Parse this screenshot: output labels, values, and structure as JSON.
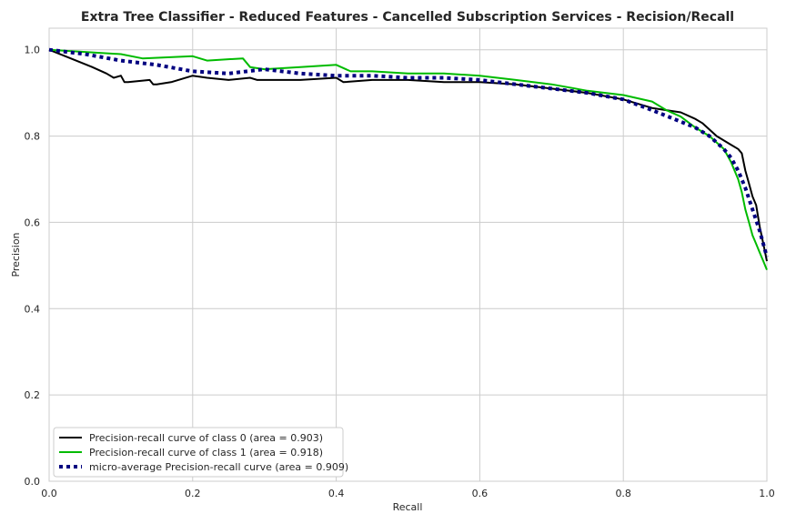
{
  "chart_data": {
    "type": "line",
    "title": "Extra Tree Classifier - Reduced Features - Cancelled Subscription Services - Recision/Recall",
    "xlabel": "Recall",
    "ylabel": "Precision",
    "xlim": [
      0.0,
      1.0
    ],
    "ylim": [
      0.0,
      1.05
    ],
    "xticks": [
      "0.0",
      "0.2",
      "0.4",
      "0.6",
      "0.8",
      "1.0"
    ],
    "yticks": [
      "0.0",
      "0.2",
      "0.4",
      "0.6",
      "0.8",
      "1.0"
    ],
    "grid": true,
    "legend_position": "lower-left",
    "series": [
      {
        "name": "Precision-recall curve of class 0 (area = 0.903)",
        "color": "#000000",
        "style": "solid",
        "x": [
          0.0,
          0.03,
          0.06,
          0.08,
          0.09,
          0.1,
          0.105,
          0.11,
          0.14,
          0.145,
          0.15,
          0.17,
          0.2,
          0.22,
          0.25,
          0.28,
          0.29,
          0.3,
          0.35,
          0.4,
          0.41,
          0.45,
          0.5,
          0.55,
          0.6,
          0.65,
          0.7,
          0.75,
          0.8,
          0.84,
          0.86,
          0.88,
          0.9,
          0.91,
          0.93,
          0.95,
          0.96,
          0.965,
          0.97,
          0.975,
          0.98,
          0.985,
          0.99,
          0.995,
          1.0
        ],
        "y": [
          1.0,
          0.98,
          0.96,
          0.945,
          0.935,
          0.94,
          0.925,
          0.925,
          0.93,
          0.92,
          0.92,
          0.925,
          0.94,
          0.935,
          0.93,
          0.935,
          0.93,
          0.93,
          0.93,
          0.935,
          0.925,
          0.93,
          0.93,
          0.925,
          0.925,
          0.92,
          0.91,
          0.9,
          0.885,
          0.865,
          0.86,
          0.855,
          0.84,
          0.83,
          0.8,
          0.78,
          0.77,
          0.76,
          0.72,
          0.69,
          0.66,
          0.64,
          0.59,
          0.55,
          0.51
        ]
      },
      {
        "name": "Precision-recall curve of class 1 (area = 0.918)",
        "color": "#00bb00",
        "style": "solid",
        "x": [
          0.0,
          0.05,
          0.1,
          0.13,
          0.2,
          0.22,
          0.27,
          0.28,
          0.3,
          0.35,
          0.4,
          0.42,
          0.43,
          0.45,
          0.5,
          0.55,
          0.6,
          0.65,
          0.7,
          0.75,
          0.8,
          0.84,
          0.86,
          0.88,
          0.9,
          0.92,
          0.94,
          0.95,
          0.96,
          0.965,
          0.97,
          0.975,
          0.98,
          0.985,
          0.99,
          0.995,
          1.0
        ],
        "y": [
          1.0,
          0.995,
          0.99,
          0.98,
          0.985,
          0.975,
          0.98,
          0.96,
          0.955,
          0.96,
          0.965,
          0.95,
          0.95,
          0.95,
          0.945,
          0.945,
          0.94,
          0.93,
          0.92,
          0.905,
          0.895,
          0.88,
          0.86,
          0.845,
          0.82,
          0.8,
          0.77,
          0.74,
          0.7,
          0.67,
          0.63,
          0.6,
          0.57,
          0.55,
          0.53,
          0.51,
          0.49
        ]
      },
      {
        "name": "micro-average Precision-recall curve (area = 0.909)",
        "color": "#000080",
        "style": "dotted",
        "x": [
          0.0,
          0.05,
          0.1,
          0.15,
          0.2,
          0.25,
          0.3,
          0.35,
          0.4,
          0.45,
          0.5,
          0.55,
          0.6,
          0.65,
          0.7,
          0.75,
          0.8,
          0.84,
          0.87,
          0.9,
          0.92,
          0.94,
          0.95,
          0.96,
          0.97,
          0.98,
          0.99,
          1.0
        ],
        "y": [
          1.0,
          0.99,
          0.975,
          0.965,
          0.95,
          0.945,
          0.955,
          0.945,
          0.94,
          0.94,
          0.935,
          0.935,
          0.93,
          0.92,
          0.91,
          0.9,
          0.885,
          0.86,
          0.84,
          0.82,
          0.8,
          0.77,
          0.75,
          0.72,
          0.68,
          0.63,
          0.58,
          0.52
        ]
      }
    ]
  }
}
